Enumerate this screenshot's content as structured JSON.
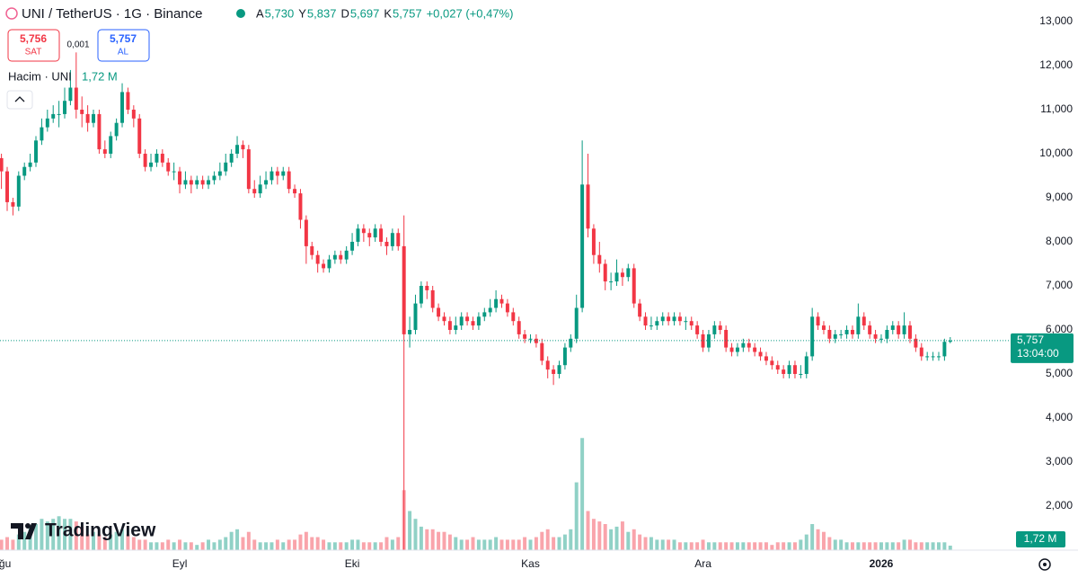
{
  "header": {
    "symbol": "UNI / TetherUS · 1G · Binance",
    "ohlc_letters": [
      "A",
      "Y",
      "D",
      "K"
    ],
    "ohlc_values": [
      "5,730",
      "5,837",
      "5,697",
      "5,757"
    ],
    "change": "+0,027 (+0,47%)",
    "sell_price": "5,756",
    "sell_label": "SAT",
    "spread": "0,001",
    "buy_price": "5,757",
    "buy_label": "AL",
    "volume_title": "Hacim · UNI",
    "volume_value": "1,72 M",
    "logo": "TradingView"
  },
  "chart_data": {
    "type": "candlestick",
    "up_color": "#089981",
    "down_color": "#f23645",
    "open": [
      9.9,
      9.6,
      8.9,
      8.8,
      9.5,
      9.7,
      9.8,
      10.3,
      10.6,
      10.8,
      10.9,
      10.9,
      11.2,
      11.5,
      11.0,
      10.9,
      10.7,
      10.9,
      10.1,
      10.0,
      10.4,
      10.7,
      11.4,
      11.0,
      10.8,
      10.0,
      9.7,
      9.8,
      10.0,
      9.8,
      9.6,
      9.6,
      9.3,
      9.4,
      9.3,
      9.4,
      9.3,
      9.4,
      9.5,
      9.6,
      9.8,
      10.0,
      10.2,
      10.1,
      9.2,
      9.1,
      9.3,
      9.4,
      9.6,
      9.5,
      9.6,
      9.2,
      9.1,
      8.5,
      7.9,
      7.7,
      7.5,
      7.4,
      7.6,
      7.7,
      7.6,
      7.8,
      8.0,
      8.3,
      8.2,
      8.1,
      8.3,
      8.0,
      7.9,
      8.2,
      7.9,
      5.9,
      6.0,
      6.6,
      7.0,
      6.9,
      6.5,
      6.3,
      6.2,
      6.0,
      6.1,
      6.3,
      6.2,
      6.1,
      6.3,
      6.4,
      6.5,
      6.7,
      6.6,
      6.4,
      6.2,
      5.9,
      5.8,
      5.8,
      5.7,
      5.3,
      5.1,
      5.0,
      5.2,
      5.6,
      5.8,
      6.5,
      9.3,
      8.3,
      7.7,
      7.5,
      7.1,
      7.1,
      7.3,
      7.2,
      7.4,
      6.6,
      6.3,
      6.1,
      6.1,
      6.2,
      6.3,
      6.2,
      6.3,
      6.2,
      6.2,
      6.1,
      5.9,
      5.6,
      5.9,
      6.1,
      6.0,
      5.6,
      5.5,
      5.6,
      5.7,
      5.6,
      5.5,
      5.4,
      5.3,
      5.2,
      5.1,
      5.0,
      5.2,
      5.0,
      5.0,
      5.4,
      6.3,
      6.1,
      6.0,
      5.8,
      5.9,
      5.9,
      6.0,
      5.9,
      6.3,
      6.1,
      5.9,
      5.8,
      5.8,
      6.0,
      6.1,
      5.9,
      6.1,
      5.8,
      5.6,
      5.4,
      5.4,
      5.4,
      5.4,
      5.73
    ],
    "high": [
      10.0,
      9.7,
      9.0,
      9.6,
      9.8,
      10.0,
      10.4,
      10.8,
      11.0,
      11.1,
      11.2,
      11.5,
      11.9,
      12.3,
      11.3,
      11.1,
      11.0,
      11.0,
      10.3,
      10.5,
      10.8,
      11.6,
      11.5,
      11.1,
      10.9,
      10.1,
      10.0,
      10.1,
      10.1,
      9.9,
      9.8,
      9.7,
      9.6,
      9.5,
      9.5,
      9.5,
      9.5,
      9.6,
      9.8,
      10.0,
      10.1,
      10.4,
      10.3,
      10.2,
      9.4,
      9.5,
      9.6,
      9.7,
      9.7,
      9.7,
      9.7,
      9.3,
      9.2,
      8.6,
      8.0,
      7.8,
      7.6,
      7.7,
      7.8,
      7.8,
      7.9,
      8.2,
      8.4,
      8.4,
      8.3,
      8.4,
      8.4,
      8.1,
      8.3,
      8.3,
      8.6,
      6.3,
      6.8,
      7.1,
      7.1,
      7.0,
      6.6,
      6.4,
      6.3,
      6.3,
      6.4,
      6.4,
      6.3,
      6.4,
      6.5,
      6.7,
      6.9,
      6.8,
      6.7,
      6.5,
      6.3,
      6.0,
      5.9,
      5.9,
      5.8,
      5.4,
      5.2,
      5.3,
      5.7,
      5.9,
      6.8,
      10.3,
      10.0,
      8.4,
      8.0,
      7.6,
      7.3,
      7.6,
      7.4,
      7.5,
      7.5,
      6.7,
      6.4,
      6.3,
      6.3,
      6.4,
      6.4,
      6.4,
      6.4,
      6.3,
      6.3,
      6.2,
      6.0,
      6.0,
      6.2,
      6.2,
      6.1,
      5.7,
      5.7,
      5.8,
      5.8,
      5.7,
      5.6,
      5.5,
      5.4,
      5.3,
      5.2,
      5.3,
      5.3,
      5.2,
      5.5,
      6.5,
      6.4,
      6.2,
      6.1,
      6.0,
      6.0,
      6.1,
      6.1,
      6.6,
      6.4,
      6.2,
      6.0,
      5.9,
      6.1,
      6.2,
      6.2,
      6.4,
      6.2,
      5.9,
      5.7,
      5.5,
      5.5,
      5.5,
      5.8,
      5.837
    ],
    "low": [
      9.2,
      8.7,
      8.6,
      8.7,
      9.4,
      9.6,
      9.7,
      10.2,
      10.5,
      10.7,
      10.6,
      10.8,
      11.1,
      10.8,
      10.6,
      10.5,
      10.6,
      10.0,
      9.9,
      9.9,
      10.3,
      10.6,
      10.9,
      10.6,
      9.9,
      9.6,
      9.6,
      9.7,
      9.7,
      9.5,
      9.4,
      9.1,
      9.2,
      9.1,
      9.2,
      9.2,
      9.2,
      9.3,
      9.4,
      9.5,
      9.7,
      9.9,
      9.9,
      9.1,
      9.0,
      9.0,
      9.2,
      9.3,
      9.3,
      9.4,
      9.1,
      9.0,
      8.3,
      7.5,
      7.6,
      7.3,
      7.3,
      7.3,
      7.5,
      7.5,
      7.5,
      7.7,
      7.9,
      8.0,
      7.9,
      8.0,
      7.9,
      7.7,
      7.8,
      7.8,
      1.0,
      5.6,
      5.9,
      6.5,
      6.7,
      6.4,
      6.2,
      6.1,
      5.9,
      5.9,
      6.0,
      6.1,
      6.0,
      6.0,
      6.2,
      6.3,
      6.4,
      6.5,
      6.3,
      6.1,
      5.8,
      5.7,
      5.7,
      5.6,
      5.2,
      4.9,
      4.75,
      4.9,
      5.1,
      5.5,
      5.7,
      6.4,
      8.1,
      7.5,
      7.3,
      6.9,
      6.9,
      7.0,
      7.0,
      7.1,
      6.5,
      6.2,
      6.0,
      6.0,
      6.0,
      6.1,
      6.1,
      6.1,
      6.1,
      6.0,
      6.0,
      5.8,
      5.5,
      5.5,
      5.8,
      5.9,
      5.5,
      5.4,
      5.4,
      5.5,
      5.5,
      5.4,
      5.3,
      5.2,
      5.1,
      5.0,
      4.9,
      4.9,
      4.9,
      4.9,
      4.9,
      5.3,
      6.0,
      5.9,
      5.7,
      5.7,
      5.8,
      5.8,
      5.8,
      5.8,
      6.0,
      5.8,
      5.7,
      5.7,
      5.7,
      5.9,
      5.8,
      5.8,
      5.7,
      5.5,
      5.3,
      5.3,
      5.3,
      5.3,
      5.3,
      5.697
    ],
    "close": [
      9.6,
      8.9,
      8.8,
      9.5,
      9.7,
      9.8,
      10.3,
      10.6,
      10.8,
      10.9,
      10.9,
      11.2,
      11.5,
      11.0,
      10.9,
      10.7,
      10.9,
      10.1,
      10.0,
      10.4,
      10.7,
      11.4,
      11.0,
      10.8,
      10.0,
      9.7,
      9.8,
      10.0,
      9.8,
      9.6,
      9.6,
      9.3,
      9.4,
      9.3,
      9.4,
      9.3,
      9.4,
      9.5,
      9.6,
      9.8,
      10.0,
      10.2,
      10.1,
      9.2,
      9.1,
      9.3,
      9.4,
      9.6,
      9.5,
      9.6,
      9.2,
      9.1,
      8.5,
      7.9,
      7.7,
      7.5,
      7.4,
      7.6,
      7.7,
      7.6,
      7.8,
      8.0,
      8.3,
      8.2,
      8.1,
      8.3,
      8.0,
      7.9,
      8.2,
      7.9,
      5.9,
      6.0,
      6.6,
      7.0,
      6.9,
      6.5,
      6.3,
      6.2,
      6.0,
      6.1,
      6.3,
      6.2,
      6.1,
      6.3,
      6.4,
      6.5,
      6.7,
      6.6,
      6.4,
      6.2,
      5.9,
      5.8,
      5.8,
      5.7,
      5.3,
      5.1,
      5.0,
      5.2,
      5.6,
      5.8,
      6.5,
      9.3,
      8.3,
      7.7,
      7.5,
      7.1,
      7.1,
      7.3,
      7.2,
      7.4,
      6.6,
      6.3,
      6.1,
      6.1,
      6.2,
      6.3,
      6.2,
      6.3,
      6.2,
      6.2,
      6.1,
      5.9,
      5.6,
      5.9,
      6.1,
      6.0,
      5.6,
      5.5,
      5.6,
      5.7,
      5.6,
      5.5,
      5.4,
      5.3,
      5.2,
      5.1,
      5.0,
      5.2,
      5.0,
      5.0,
      5.4,
      6.3,
      6.1,
      6.0,
      5.8,
      5.9,
      5.9,
      6.0,
      5.9,
      6.3,
      6.1,
      5.9,
      5.8,
      5.8,
      6.0,
      6.1,
      5.9,
      6.1,
      5.8,
      5.6,
      5.4,
      5.4,
      5.4,
      5.4,
      5.73,
      5.757
    ],
    "volume": [
      4,
      5,
      4,
      6,
      7,
      9,
      10,
      12,
      11,
      12,
      13,
      12,
      12,
      11,
      9,
      6,
      7,
      6,
      5,
      6,
      7,
      8,
      6,
      5,
      4,
      4,
      3,
      3,
      3,
      4,
      3,
      4,
      3,
      3,
      2,
      3,
      4,
      3,
      4,
      5,
      7,
      8,
      5,
      7,
      4,
      3,
      3,
      3,
      4,
      3,
      4,
      4,
      6,
      7,
      5,
      5,
      4,
      3,
      3,
      3,
      3,
      4,
      4,
      3,
      3,
      3,
      3,
      5,
      4,
      5,
      23,
      15,
      12,
      9,
      8,
      8,
      7,
      7,
      6,
      5,
      4,
      4,
      5,
      4,
      4,
      4,
      5,
      4,
      4,
      4,
      4,
      5,
      4,
      5,
      7,
      8,
      5,
      5,
      6,
      8,
      26,
      43,
      15,
      12,
      11,
      10,
      8,
      9,
      11,
      7,
      8,
      6,
      5,
      5,
      4,
      4,
      4,
      4,
      3,
      3,
      3,
      3,
      4,
      3,
      3,
      3,
      3,
      3,
      3,
      3,
      3,
      3,
      3,
      3,
      2,
      3,
      3,
      3,
      3,
      4,
      6,
      10,
      8,
      7,
      5,
      4,
      4,
      3,
      3,
      3,
      3,
      3,
      3,
      3,
      3,
      3,
      3,
      4,
      4,
      3,
      3,
      3,
      3,
      3,
      3,
      1.72
    ],
    "volume_ylim": [
      0,
      211
    ],
    "xlim": [
      -0.25,
      175.5
    ],
    "xticks": [
      {
        "value": 0,
        "label": "Ağu"
      },
      {
        "value": 31,
        "label": "Eyl"
      },
      {
        "value": 61,
        "label": "Eki"
      },
      {
        "value": 92,
        "label": "Kas"
      },
      {
        "value": 122,
        "label": "Ara"
      },
      {
        "value": 153,
        "label": "2026"
      }
    ],
    "ylim": [
      1.0,
      13.49
    ],
    "yticks": [
      {
        "value": 13,
        "label": "13,000"
      },
      {
        "value": 12,
        "label": "12,000"
      },
      {
        "value": 11,
        "label": "11,000"
      },
      {
        "value": 10,
        "label": "10,000"
      },
      {
        "value": 9,
        "label": "9,000"
      },
      {
        "value": 8,
        "label": "8,000"
      },
      {
        "value": 7,
        "label": "7,000"
      },
      {
        "value": 6,
        "label": "6,000"
      },
      {
        "value": 5,
        "label": "5,000"
      },
      {
        "value": 4,
        "label": "4,000"
      },
      {
        "value": 3,
        "label": "3,000"
      },
      {
        "value": 2,
        "label": "2,000"
      }
    ],
    "price_tag": {
      "value": 5.757,
      "label": "5,757",
      "time": "13:04:00"
    }
  }
}
